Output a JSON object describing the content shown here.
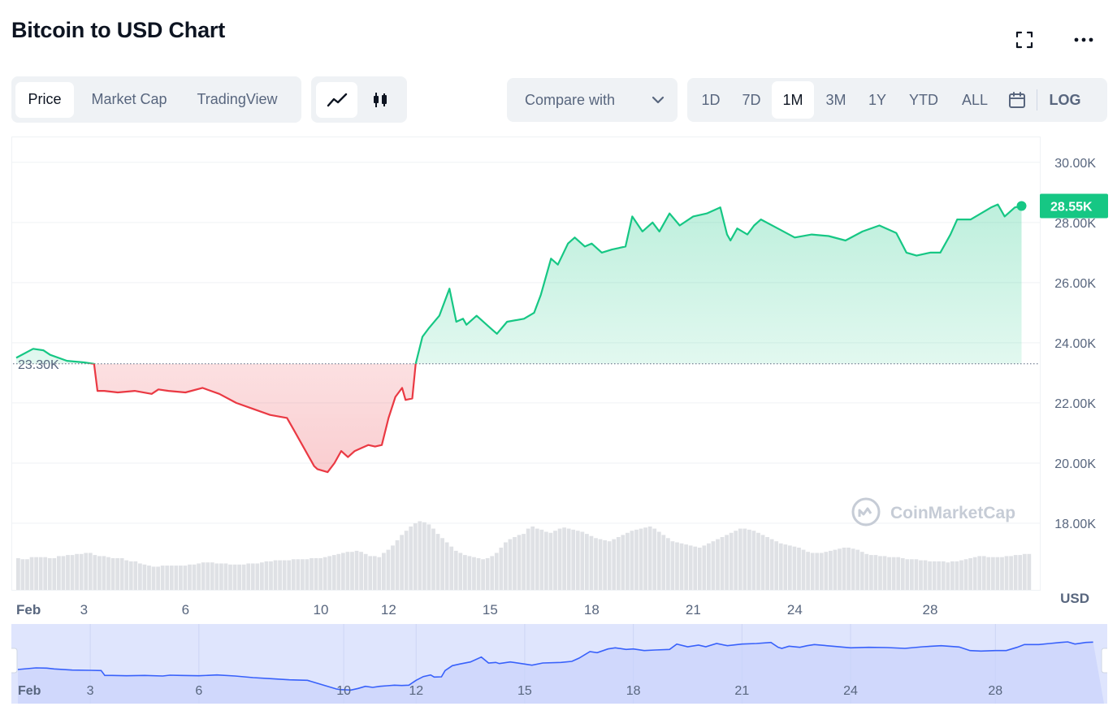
{
  "header": {
    "title": "Bitcoin to USD Chart",
    "fullscreen_icon": "expand-icon",
    "more_icon": "more-horizontal-icon"
  },
  "view_tabs": [
    "Price",
    "Market Cap",
    "TradingView"
  ],
  "view_tabs_active": "Price",
  "chart_style": {
    "line_icon": "line-chart-icon",
    "candle_icon": "candlestick-icon",
    "active": "line"
  },
  "compare": {
    "label": "Compare with",
    "icon": "chevron-down-icon"
  },
  "ranges": [
    "1D",
    "7D",
    "1M",
    "3M",
    "1Y",
    "YTD",
    "ALL"
  ],
  "range_active": "1M",
  "calendar_icon": "calendar-icon",
  "log_label": "LOG",
  "watermark": "CoinMarketCap",
  "colors": {
    "up": "#16c784",
    "down": "#ea3943",
    "navigator": "#3861fb",
    "navigator_fill": "#dfe5fd"
  },
  "chart_data": {
    "type": "line",
    "title": "Bitcoin to USD Chart",
    "y_unit": "USD",
    "ylim": [
      17000,
      30400
    ],
    "yticks": [
      30000,
      28000,
      26000,
      24000,
      22000,
      20000,
      18000
    ],
    "ytick_labels": [
      "30.00K",
      "28.00K",
      "26.00K",
      "24.00K",
      "22.00K",
      "20.00K",
      "18.00K"
    ],
    "xlim": [
      0,
      30
    ],
    "xticks": [
      0,
      2,
      5,
      9,
      11,
      14,
      17,
      20,
      23,
      27
    ],
    "xtick_labels": [
      "Feb",
      "3",
      "6",
      "10",
      "12",
      "15",
      "18",
      "21",
      "24",
      "28"
    ],
    "baseline": {
      "value": 23300,
      "label": "23.30K"
    },
    "last_price": {
      "value": 28550,
      "label": "28.55K"
    },
    "grid": true,
    "series": [
      {
        "x": [
          0,
          0.5,
          0.8,
          1,
          1.5,
          2,
          2.3,
          2.4,
          2.6,
          3,
          3.5,
          4,
          4.2,
          4.5,
          5,
          5.5,
          6,
          6.5,
          7,
          7.5,
          8,
          8.2,
          8.5,
          8.8,
          8.9,
          9.2,
          9.4,
          9.6,
          9.8,
          10,
          10.2,
          10.4,
          10.6,
          10.8,
          11,
          11.2,
          11.4,
          11.5,
          11.7,
          11.8,
          12,
          12.2,
          12.5,
          12.8,
          13,
          13.2,
          13.3,
          13.6,
          14,
          14.2,
          14.5,
          15,
          15.3,
          15.5,
          15.8,
          16,
          16.3,
          16.5,
          16.8,
          17,
          17.3,
          17.6,
          18,
          18.2,
          18.5,
          18.8,
          19,
          19.3,
          19.6,
          20,
          20.4,
          20.8,
          21,
          21.1,
          21.3,
          21.6,
          21.8,
          22,
          22.5,
          23,
          23.5,
          24,
          24.5,
          25,
          25.5,
          26,
          26.3,
          26.6,
          27,
          27.3,
          27.6,
          27.8,
          28.2,
          28.5,
          28.8,
          29,
          29.2,
          29.5,
          29.7
        ],
        "y": [
          23500,
          23800,
          23750,
          23600,
          23400,
          23350,
          23300,
          22400,
          22400,
          22350,
          22400,
          22300,
          22450,
          22400,
          22350,
          22500,
          22300,
          22000,
          21800,
          21600,
          21500,
          21100,
          20500,
          19900,
          19800,
          19700,
          20000,
          20400,
          20200,
          20400,
          20500,
          20600,
          20550,
          20600,
          21500,
          22200,
          22500,
          22100,
          22150,
          23300,
          24200,
          24500,
          24900,
          25800,
          24700,
          24800,
          24600,
          24900,
          24500,
          24300,
          24700,
          24800,
          25000,
          25600,
          26800,
          26600,
          27300,
          27500,
          27200,
          27300,
          27000,
          27100,
          27200,
          28200,
          27700,
          28000,
          27700,
          28300,
          27900,
          28200,
          28300,
          28500,
          27600,
          27400,
          27800,
          27600,
          27900,
          28100,
          27800,
          27500,
          27600,
          27550,
          27400,
          27700,
          27900,
          27650,
          27000,
          26900,
          27000,
          27000,
          27600,
          28100,
          28100,
          28300,
          28500,
          28600,
          28200,
          28500,
          28550
        ],
        "name": ""
      }
    ],
    "volume": [
      30,
      29,
      29,
      31,
      31,
      31,
      31,
      30,
      30,
      32,
      32,
      33,
      33,
      34,
      34,
      35,
      35,
      33,
      32,
      32,
      31,
      30,
      30,
      30,
      28,
      27,
      27,
      25,
      24,
      23,
      22,
      22,
      23,
      23,
      23,
      23,
      23,
      23,
      24,
      24,
      25,
      26,
      26,
      26,
      25,
      25,
      25,
      24,
      24,
      24,
      24,
      25,
      25,
      25,
      26,
      27,
      27,
      28,
      28,
      28,
      28,
      29,
      29,
      29,
      29,
      30,
      30,
      30,
      31,
      32,
      33,
      34,
      35,
      36,
      36,
      37,
      36,
      34,
      32,
      32,
      31,
      35,
      38,
      42,
      47,
      52,
      56,
      60,
      63,
      65,
      64,
      62,
      58,
      53,
      49,
      45,
      41,
      37,
      35,
      33,
      32,
      31,
      30,
      29,
      30,
      32,
      35,
      40,
      45,
      48,
      50,
      52,
      53,
      58,
      60,
      58,
      57,
      55,
      54,
      56,
      58,
      59,
      58,
      57,
      56,
      55,
      53,
      51,
      49,
      48,
      47,
      46,
      48,
      50,
      52,
      54,
      56,
      57,
      58,
      59,
      60,
      58,
      55,
      52,
      49,
      46,
      45,
      44,
      43,
      42,
      41,
      40,
      42,
      44,
      46,
      48,
      50,
      52,
      54,
      56,
      58,
      58,
      57,
      56,
      54,
      52,
      50,
      48,
      46,
      44,
      43,
      42,
      41,
      40,
      38,
      36,
      35,
      35,
      35,
      36,
      37,
      38,
      39,
      40,
      40,
      39,
      38,
      36,
      34,
      33,
      33,
      32,
      32,
      31,
      31,
      31,
      30,
      29,
      29,
      29,
      28,
      28,
      27,
      27,
      27,
      27,
      26,
      27,
      27,
      28,
      29,
      30,
      31,
      32,
      32,
      31,
      31,
      31,
      31,
      32,
      32,
      33,
      33,
      34,
      34
    ]
  },
  "navigator": {
    "xtick_labels": [
      "Feb",
      "3",
      "6",
      "10",
      "12",
      "15",
      "18",
      "21",
      "24",
      "28"
    ]
  }
}
